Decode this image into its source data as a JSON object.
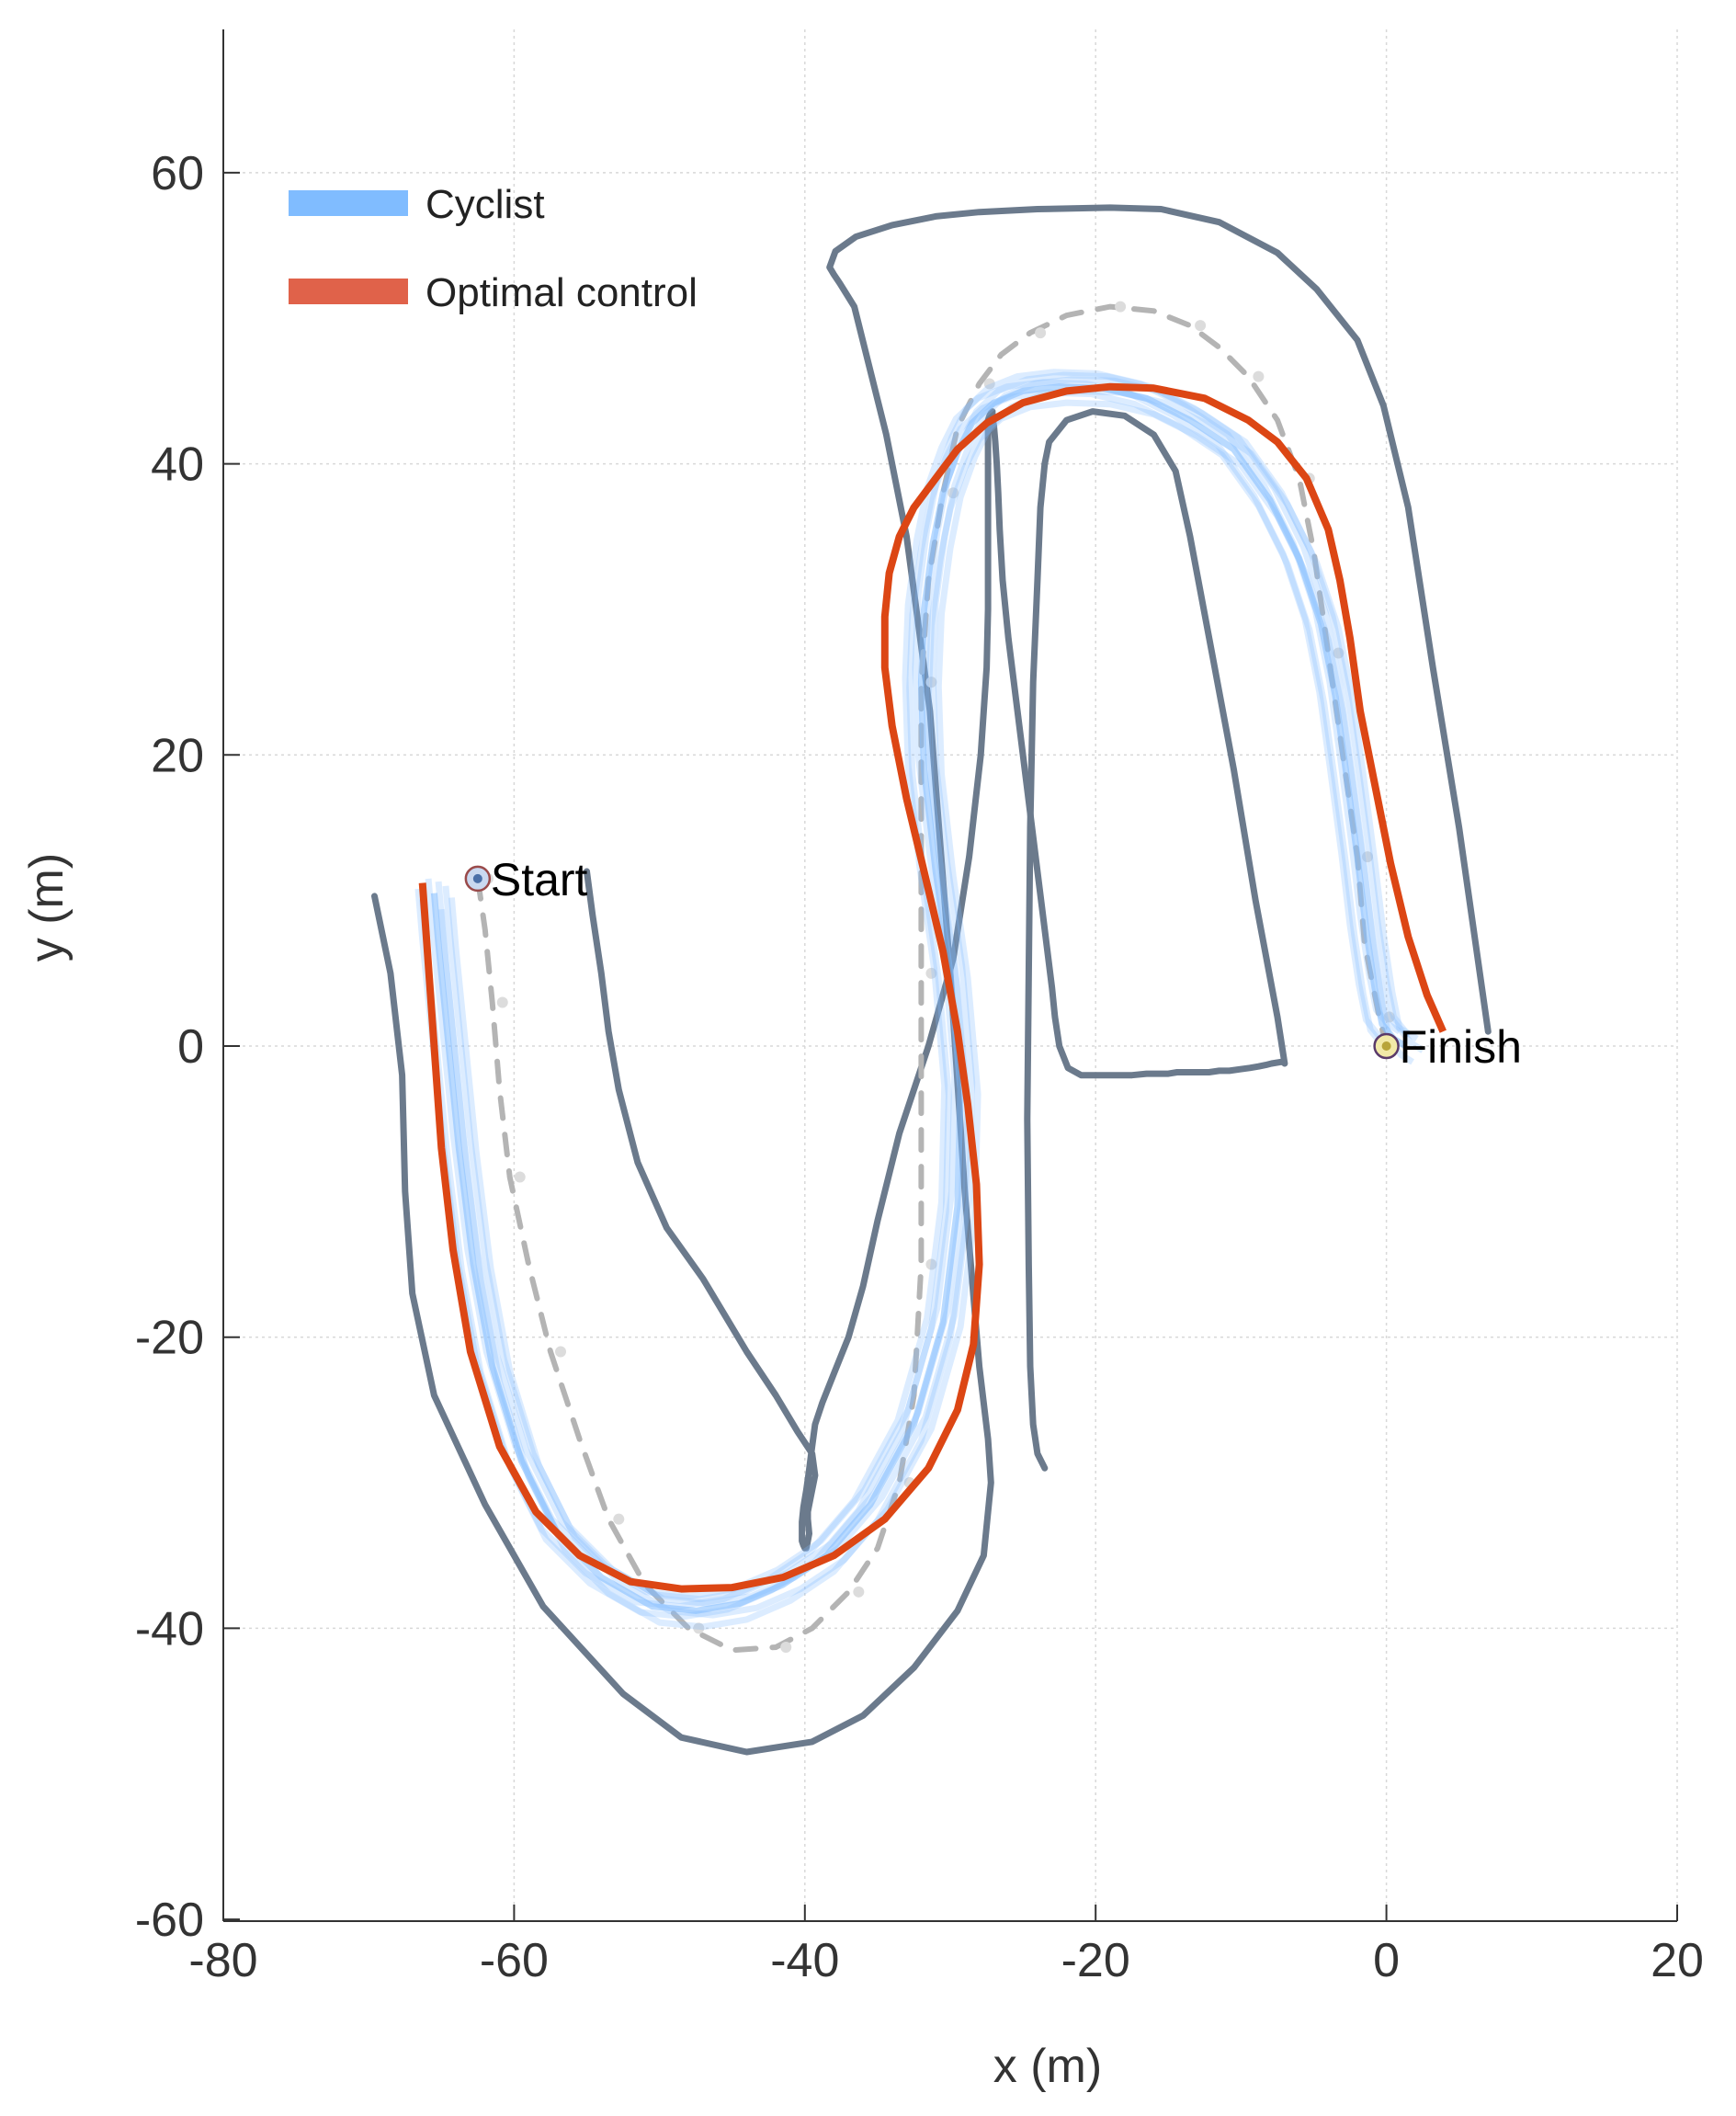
{
  "chart_data": {
    "type": "line",
    "title": "",
    "xlabel": "x (m)",
    "ylabel": "y (m)",
    "xlim": [
      -80,
      20
    ],
    "ylim": [
      -60,
      70
    ],
    "xticks": [
      -80,
      -60,
      -40,
      -20,
      0,
      20
    ],
    "yticks": [
      -60,
      -40,
      -20,
      0,
      20,
      40,
      60
    ],
    "tick_labels_x": [
      "-80",
      "-60",
      "-40",
      "-20",
      "0",
      "20"
    ],
    "tick_labels_y": [
      "-60",
      "-40",
      "-20",
      "0",
      "20",
      "40",
      "60"
    ],
    "grid": true,
    "legend_position": "top-left",
    "colors": {
      "boundary": "#6b7a8c",
      "centerline": "#b4b4b4",
      "cyclist": "#80bcff",
      "optimal": "#dc4614"
    },
    "legend": [
      {
        "label": "Cyclist",
        "color": "#80bcff"
      },
      {
        "label": "Optimal control",
        "color": "#e0624a"
      }
    ],
    "annotations": [
      {
        "text": "Start",
        "x": -62.5,
        "y": 11.5
      },
      {
        "text": "Finish",
        "x": 0,
        "y": 0
      }
    ],
    "series": [
      {
        "role": "outer-boundary",
        "x": [
          -69.6,
          -68.5,
          -67.7,
          -67.5,
          -67.0,
          -65.5,
          -62.0,
          -58.0,
          -52.5,
          -48.5,
          -44.0,
          -39.5,
          -36.0,
          -32.5,
          -29.5,
          -27.7,
          -27.2,
          -27.4,
          -28.0,
          -29.0,
          -30.0,
          -31.4,
          -33.0,
          -34.4,
          -36.6,
          -37.1,
          -37.6,
          -38.0,
          -38.3,
          -37.9,
          -36.5,
          -34.0,
          -31.0,
          -28.0,
          -24.0,
          -19.0,
          -15.5,
          -11.5,
          -7.5,
          -4.8,
          -2.0,
          -0.2,
          1.5,
          3.2,
          5.0,
          7.0
        ],
        "y": [
          10.3,
          5.0,
          -2.0,
          -10.0,
          -17.0,
          -24.0,
          -31.5,
          -38.5,
          -44.5,
          -47.5,
          -48.5,
          -47.8,
          -46.0,
          -42.7,
          -38.8,
          -35.0,
          -30.0,
          -27.0,
          -22.0,
          -10.0,
          5.0,
          23.0,
          35.0,
          42.0,
          50.8,
          51.6,
          52.4,
          53.0,
          53.5,
          54.6,
          55.6,
          56.4,
          57.0,
          57.3,
          57.5,
          57.6,
          57.5,
          56.6,
          54.5,
          52.0,
          48.5,
          44.0,
          37.0,
          26.0,
          15.0,
          1.0
        ]
      },
      {
        "role": "inner-boundary",
        "x": [
          -55.0,
          -54.6,
          -54.0,
          -53.5,
          -52.8,
          -51.5,
          -49.5,
          -47.0,
          -45.5,
          -44.0,
          -42.0,
          -40.5,
          -39.5,
          -39.3,
          -39.4,
          -39.6,
          -39.8,
          -39.8,
          -39.7,
          -39.8,
          -39.9,
          -40.0,
          -40.1,
          -40.2,
          -40.2,
          -40.2,
          -40.1,
          -39.9,
          -39.7,
          -39.5,
          -39.3,
          -38.8,
          -38.0,
          -37.0,
          -36.0,
          -35.0,
          -33.5,
          -31.5,
          -29.8,
          -28.7,
          -27.9,
          -27.5,
          -27.4,
          -27.4,
          -27.4,
          -27.4,
          -27.4,
          -27.4,
          -27.3,
          -27.2,
          -27.1,
          -27.1,
          -27.1,
          -27.1,
          -27.0,
          -26.9,
          -26.8,
          -26.7,
          -26.6,
          -26.4,
          -26.0,
          -25.5,
          -25.0,
          -24.5,
          -24.0,
          -23.5,
          -23.0,
          -22.8,
          -22.5,
          -21.9,
          -21.0,
          -20.0,
          -18.5,
          -17.5,
          -16.5,
          -15.7,
          -15.0,
          -14.4,
          -13.7,
          -13.0,
          -12.2,
          -11.5,
          -10.8,
          -10.1,
          -9.4,
          -8.8,
          -8.3,
          -7.9,
          -7.3,
          -7.1
        ],
        "y": [
          12.0,
          9.0,
          5.0,
          1.0,
          -3.0,
          -8.0,
          -12.5,
          -16.0,
          -18.5,
          -21.0,
          -24.0,
          -26.5,
          -28.0,
          -29.5,
          -30.0,
          -31.0,
          -32.0,
          -32.5,
          -33.5,
          -34.0,
          -34.5,
          -34.5,
          -34.3,
          -34.0,
          -33.4,
          -32.7,
          -31.7,
          -30.5,
          -29.1,
          -27.5,
          -26.0,
          -24.5,
          -22.5,
          -20.0,
          -16.5,
          -12.0,
          -6.0,
          0.0,
          6.0,
          13.0,
          20.0,
          26.0,
          30.0,
          34.0,
          38.0,
          41.0,
          42.5,
          43.0,
          43.3,
          43.5,
          43.6,
          43.6,
          43.5,
          43.2,
          42.6,
          41.5,
          40.0,
          38.0,
          35.5,
          32.0,
          28.0,
          24.0,
          20.0,
          16.0,
          12.0,
          8.0,
          4.0,
          2.0,
          0.0,
          -1.5,
          -2.0,
          -2.0,
          -2.0,
          -2.0,
          -1.9,
          -1.9,
          -1.9,
          -1.8,
          -1.8,
          -1.8,
          -1.8,
          -1.7,
          -1.7,
          -1.6,
          -1.5,
          -1.4,
          -1.3,
          -1.2,
          -1.1,
          -1.1
        ]
      },
      {
        "role": "inner-boundary-right",
        "x": [
          -23.5,
          -23.2,
          -22.0,
          -20.2,
          -18.0,
          -16.0,
          -14.5,
          -13.5,
          -12.0,
          -10.5,
          -9.0,
          -7.5,
          -7.0
        ],
        "y": [
          40.0,
          41.5,
          43.0,
          43.6,
          43.3,
          42.0,
          39.5,
          35.0,
          27.0,
          19.0,
          10.0,
          2.0,
          -1.2
        ]
      },
      {
        "role": "inner-boundary-left-stem",
        "x": [
          -23.5,
          -23.8,
          -24.0,
          -24.3,
          -24.5,
          -24.6,
          -24.7,
          -24.6,
          -24.5,
          -24.3,
          -24.0,
          -23.5
        ],
        "y": [
          40.0,
          37.0,
          32.0,
          25.0,
          15.0,
          5.0,
          -5.0,
          -15.0,
          -22.0,
          -26.0,
          -28.0,
          -29.0
        ]
      },
      {
        "role": "centerline",
        "x": [
          -62.5,
          -62.0,
          -61.5,
          -61.0,
          -60.3,
          -59.0,
          -57.5,
          -55.5,
          -53.5,
          -51.0,
          -48.0,
          -45.0,
          -42.0,
          -39.5,
          -37.0,
          -35.0,
          -33.5,
          -32.5,
          -32.0,
          -32.0,
          -32.0,
          -32.0,
          -32.0,
          -31.5,
          -30.5,
          -29.5,
          -28.0,
          -26.5,
          -24.5,
          -22.0,
          -19.0,
          -16.0,
          -13.5,
          -11.5,
          -9.5,
          -7.5,
          -6.0,
          -5.0,
          -4.0,
          -3.0,
          -2.0,
          -1.5,
          -0.5,
          0.0
        ],
        "y": [
          11.5,
          8.0,
          3.0,
          -3.0,
          -9.0,
          -15.0,
          -21.0,
          -27.0,
          -32.5,
          -37.0,
          -40.0,
          -41.5,
          -41.3,
          -40.0,
          -37.5,
          -34.5,
          -30.0,
          -24.0,
          -15.0,
          -5.0,
          5.0,
          15.0,
          25.0,
          32.0,
          38.0,
          42.5,
          45.5,
          47.5,
          49.0,
          50.2,
          50.8,
          50.5,
          49.5,
          48.0,
          46.0,
          43.0,
          39.0,
          34.0,
          27.0,
          20.0,
          13.0,
          7.0,
          2.0,
          0.0
        ]
      },
      {
        "role": "cyclist",
        "name": "Cyclist",
        "x": [
          -65.5,
          -65.2,
          -64.6,
          -63.8,
          -62.8,
          -61.5,
          -59.5,
          -57.0,
          -54.0,
          -50.5,
          -47.5,
          -44.5,
          -41.5,
          -38.5,
          -35.5,
          -32.5,
          -30.5,
          -29.5,
          -29.3,
          -30.0,
          -31.0,
          -31.8,
          -32.0,
          -31.8,
          -31.2,
          -30.5,
          -29.5,
          -28.5,
          -27.0,
          -25.0,
          -22.5,
          -19.5,
          -16.5,
          -13.5,
          -10.5,
          -8.0,
          -6.0,
          -4.5,
          -3.5,
          -2.8,
          -2.0,
          -1.4,
          -0.8,
          -0.3,
          0.5,
          1.3
        ],
        "y": [
          10.5,
          7.0,
          1.0,
          -7.0,
          -15.0,
          -22.0,
          -28.5,
          -33.5,
          -36.5,
          -38.5,
          -38.8,
          -38.3,
          -37.0,
          -35.0,
          -31.5,
          -26.0,
          -19.0,
          -11.0,
          -3.0,
          5.0,
          12.0,
          19.0,
          25.0,
          30.0,
          34.5,
          38.0,
          40.8,
          42.8,
          44.2,
          45.0,
          45.3,
          45.2,
          44.5,
          43.0,
          41.0,
          37.5,
          33.5,
          29.0,
          24.0,
          19.0,
          13.0,
          8.0,
          4.0,
          1.5,
          0.5,
          0.0
        ]
      },
      {
        "role": "optimal",
        "name": "Optimal control",
        "x": [
          -66.3,
          -66.0,
          -65.5,
          -65.0,
          -64.2,
          -63.0,
          -61.0,
          -58.5,
          -55.5,
          -52.0,
          -48.5,
          -45.0,
          -41.5,
          -38.0,
          -34.5,
          -31.5,
          -29.5,
          -28.4,
          -28.0,
          -28.2,
          -28.8,
          -29.5,
          -30.5,
          -31.8,
          -33.0,
          -34.0,
          -34.5,
          -34.5,
          -34.2,
          -33.5,
          -32.5,
          -31.0,
          -29.5,
          -27.5,
          -25.0,
          -22.0,
          -19.0,
          -16.0,
          -12.5,
          -9.5,
          -7.5,
          -5.5,
          -4.0,
          -3.2,
          -2.5,
          -1.8,
          -0.8,
          0.3,
          1.5,
          2.8,
          3.9
        ],
        "y": [
          11.2,
          7.0,
          0.0,
          -7.0,
          -14.0,
          -21.0,
          -27.5,
          -32.0,
          -35.0,
          -36.8,
          -37.3,
          -37.2,
          -36.5,
          -35.0,
          -32.5,
          -29.0,
          -25.0,
          -20.5,
          -15.0,
          -9.5,
          -4.0,
          1.0,
          6.5,
          12.0,
          17.0,
          22.0,
          26.0,
          29.5,
          32.5,
          35.0,
          37.0,
          39.0,
          41.0,
          42.8,
          44.2,
          45.0,
          45.3,
          45.2,
          44.5,
          43.0,
          41.5,
          39.0,
          35.5,
          32.0,
          28.0,
          23.0,
          18.0,
          12.5,
          7.5,
          3.5,
          1.0
        ]
      }
    ]
  }
}
